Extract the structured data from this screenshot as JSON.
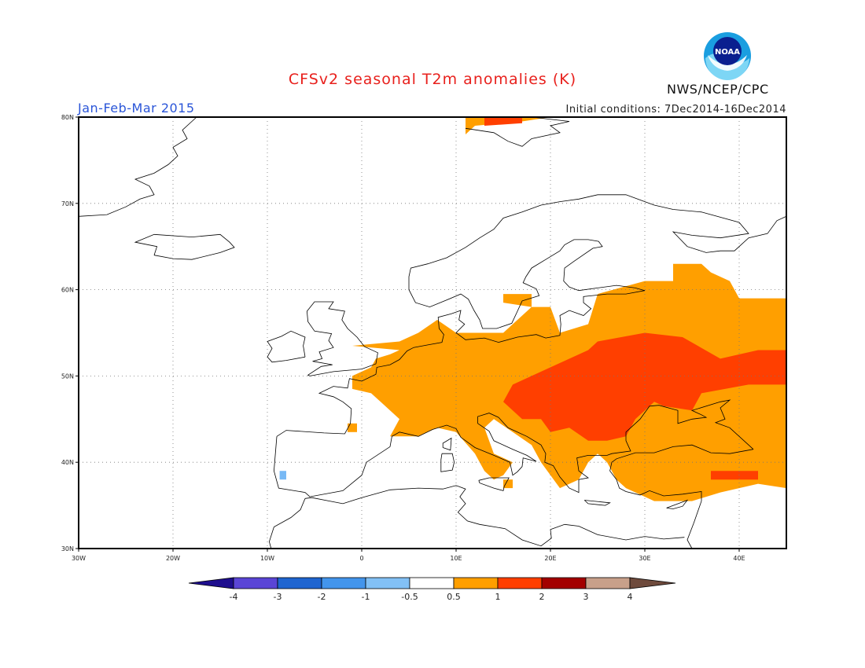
{
  "header": {
    "title": "CFSv2 seasonal T2m anomalies (K)",
    "period": "Jan-Feb-Mar 2015",
    "initial_conditions": "Initial conditions: 7Dec2014-16Dec2014",
    "agency": "NWS/NCEP/CPC",
    "logo_text": "NOAA"
  },
  "map": {
    "lon_range": [
      -30,
      45
    ],
    "lat_range": [
      30,
      80
    ],
    "lon_ticks": [
      "30W",
      "20W",
      "10W",
      "0",
      "10E",
      "20E",
      "30E",
      "40E"
    ],
    "lat_ticks": [
      "30N",
      "40N",
      "50N",
      "60N",
      "70N",
      "80N"
    ],
    "gridlines": "dotted",
    "anomaly_regions": [
      {
        "level": "0.5 to 1",
        "color": "#ff9f00",
        "description": "western/central Europe, Balkans, Scandinavia-south, Turkey, western Russia"
      },
      {
        "level": "1 to 2",
        "color": "#ff3f00",
        "description": "eastern Europe, Ukraine, southern Russia, Svalbard"
      },
      {
        "level": "-1 to -0.5",
        "color": "#78b9f5",
        "description": "Portugal coast"
      }
    ]
  },
  "colorbar": {
    "labels": [
      "-4",
      "-3",
      "-2",
      "-1",
      "-0.5",
      "0.5",
      "1",
      "2",
      "3",
      "4"
    ],
    "colors": [
      "#1e0e8e",
      "#5a45d6",
      "#1f65d0",
      "#4395ec",
      "#82c0f5",
      "#ffffff",
      "#ff9f00",
      "#ff3f00",
      "#a30000",
      "#c8a08a",
      "#6e4a3c"
    ]
  }
}
